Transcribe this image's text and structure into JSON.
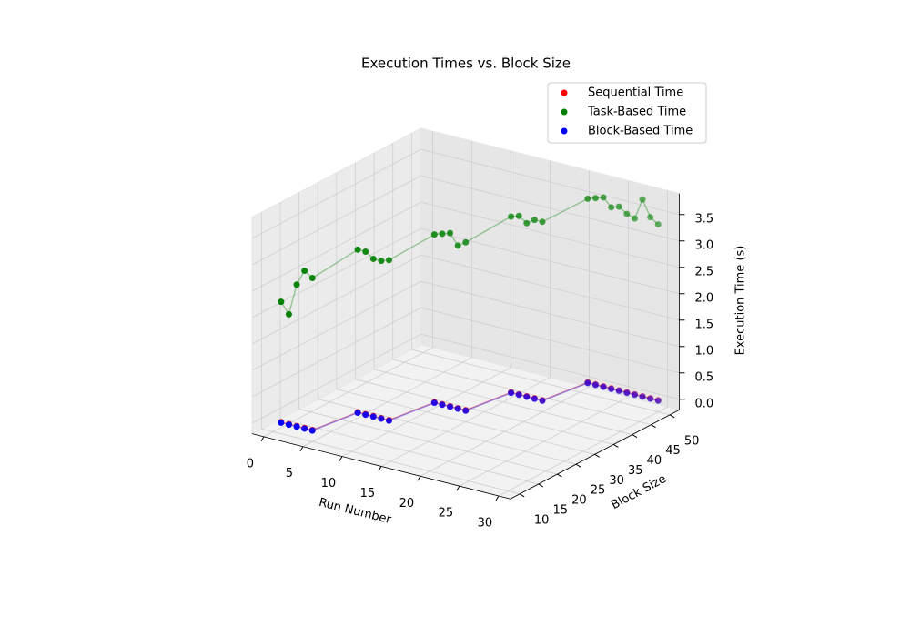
{
  "chart_data": {
    "type": "scatter3d",
    "title": "Execution Times vs. Block Size",
    "xlabel": "Run Number",
    "ylabel": "Block Size",
    "zlabel": "Execution Time (s)",
    "x": [
      1,
      2,
      3,
      4,
      5,
      6,
      7,
      8,
      9,
      10,
      11,
      12,
      13,
      14,
      15,
      16,
      17,
      18,
      19,
      20,
      21,
      22,
      23,
      24,
      25,
      26,
      27,
      28,
      29,
      30
    ],
    "y": [
      10,
      10,
      10,
      10,
      10,
      20,
      20,
      20,
      20,
      20,
      30,
      30,
      30,
      30,
      30,
      40,
      40,
      40,
      40,
      40,
      50,
      50,
      50,
      50,
      50,
      50,
      50,
      50,
      50,
      50
    ],
    "series": [
      {
        "name": "Sequential Time",
        "color": "#ff0000",
        "values": [
          0.02,
          0.02,
          0.02,
          0.02,
          0.02,
          0.02,
          0.02,
          0.02,
          0.02,
          0.02,
          0.02,
          0.02,
          0.02,
          0.02,
          0.02,
          0.02,
          0.02,
          0.02,
          0.02,
          0.02,
          0.02,
          0.02,
          0.02,
          0.02,
          0.02,
          0.02,
          0.02,
          0.02,
          0.02,
          0.02
        ]
      },
      {
        "name": "Task-Based Time",
        "color": "#008000",
        "values": [
          2.3,
          2.1,
          2.7,
          3.0,
          2.9,
          3.1,
          3.1,
          3.0,
          3.0,
          3.05,
          3.2,
          3.25,
          3.3,
          3.1,
          3.2,
          3.35,
          3.4,
          3.3,
          3.4,
          3.4,
          3.5,
          3.55,
          3.6,
          3.45,
          3.5,
          3.4,
          3.35,
          3.75,
          3.45,
          3.35
        ]
      },
      {
        "name": "Block-Based Time",
        "color": "#0000ff",
        "values": [
          0.01,
          0.01,
          0.01,
          0.01,
          0.01,
          0.01,
          0.01,
          0.01,
          0.01,
          0.01,
          0.01,
          0.01,
          0.01,
          0.01,
          0.01,
          0.01,
          0.01,
          0.01,
          0.01,
          0.01,
          0.01,
          0.01,
          0.01,
          0.01,
          0.01,
          0.01,
          0.01,
          0.01,
          0.01,
          0.01
        ]
      }
    ],
    "xlim": [
      -1.5,
      31.5
    ],
    "ylim": [
      7.5,
      52.5
    ],
    "zlim": [
      -0.2,
      3.9
    ],
    "xticks": [
      0,
      5,
      10,
      15,
      20,
      25,
      30
    ],
    "yticks": [
      10,
      15,
      20,
      25,
      30,
      35,
      40,
      45,
      50
    ],
    "zticks": [
      {
        "value": 0,
        "label": "0.0"
      },
      0.5,
      {
        "value": 1,
        "label": "1.0"
      },
      1.5,
      {
        "value": 2,
        "label": "2.0"
      },
      2.5,
      {
        "value": 3,
        "label": "3.0"
      },
      3.5
    ],
    "grid": true,
    "legend": "upper right"
  }
}
